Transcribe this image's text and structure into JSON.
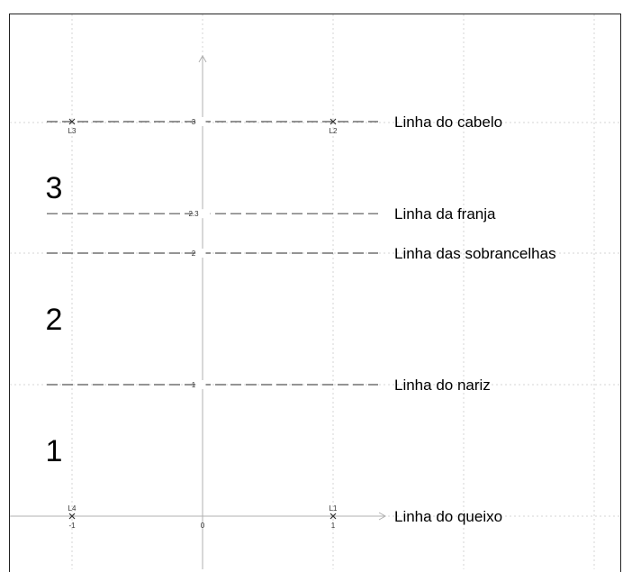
{
  "diagram": {
    "axis_x_ticks": [
      {
        "value": -1,
        "label": "-1"
      },
      {
        "value": 0,
        "label": "0"
      },
      {
        "value": 1,
        "label": "1"
      }
    ],
    "guide_lines": [
      {
        "y": 0,
        "label": "Linha do queixo"
      },
      {
        "y": 1,
        "label": "Linha do nariz",
        "tick": "1"
      },
      {
        "y": 2,
        "label": "Linha das sobrancelhas",
        "tick": "2"
      },
      {
        "y": 2.3,
        "label": "Linha da franja",
        "tick": "2.3"
      },
      {
        "y": 3,
        "label": "Linha do cabelo",
        "tick": "3"
      }
    ],
    "points": [
      {
        "name": "L1",
        "x": 1,
        "y": 0
      },
      {
        "name": "L2",
        "x": 1,
        "y": 3
      },
      {
        "name": "L3",
        "x": -1,
        "y": 3
      },
      {
        "name": "L4",
        "x": -1,
        "y": 0
      }
    ],
    "regions": [
      {
        "label": "1",
        "y": 0.5
      },
      {
        "label": "2",
        "y": 1.5
      },
      {
        "label": "3",
        "y": 2.5
      }
    ]
  }
}
